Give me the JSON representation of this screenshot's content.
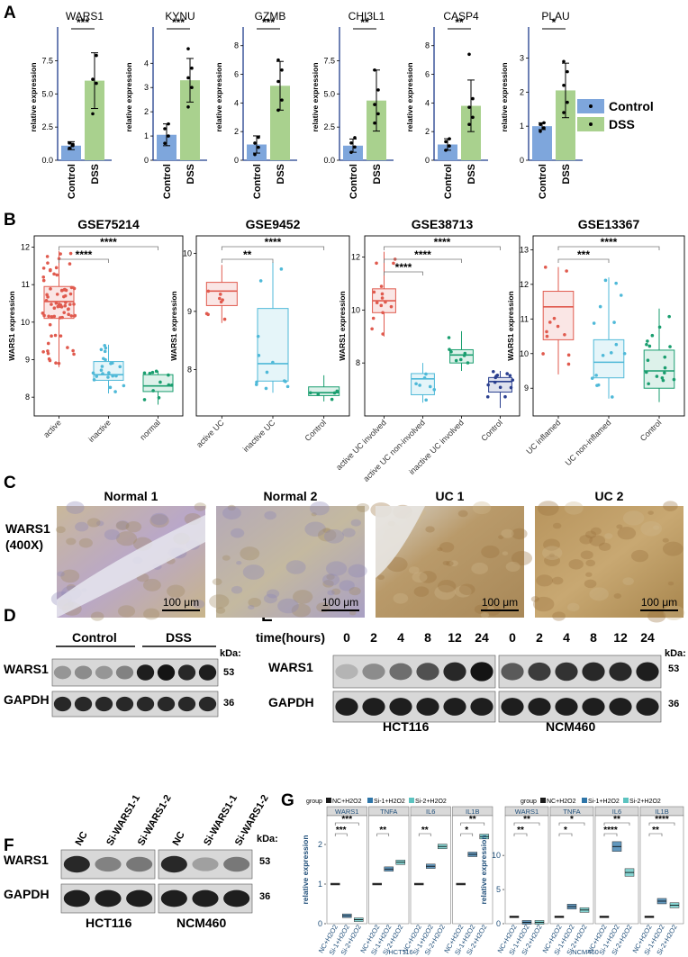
{
  "panels": {
    "a": "A",
    "b": "B",
    "c": "C",
    "d": "D",
    "e": "E",
    "f": "F",
    "g": "G"
  },
  "panel_a": {
    "ylabel": "relative expression",
    "categories": [
      "Control",
      "DSS"
    ],
    "legend": [
      "Control",
      "DSS"
    ],
    "colors": {
      "control": "#7ea6dc",
      "dss": "#a9d18e"
    },
    "genes": [
      {
        "name": "WARS1",
        "sig": "***",
        "ticks": [
          0.0,
          2.5,
          5.0,
          7.5
        ],
        "tick_labels": [
          "0.0",
          "2.5",
          "5.0",
          "7.5"
        ],
        "ymax": 9.5,
        "control": 1.1,
        "control_sd": 0.3,
        "dss": 6.0,
        "dss_sd": 2.1,
        "control_pts": [
          0.9,
          1.1,
          1.3,
          1.2
        ],
        "dss_pts": [
          3.5,
          5.8,
          6.1,
          7.9
        ]
      },
      {
        "name": "KYNU",
        "sig": "***",
        "ticks": [
          0,
          1,
          2,
          3,
          4
        ],
        "tick_labels": [
          "0",
          "1",
          "2",
          "3",
          "4"
        ],
        "ymax": 5.2,
        "control": 1.05,
        "control_sd": 0.45,
        "dss": 3.3,
        "dss_sd": 0.9,
        "control_pts": [
          0.7,
          1.0,
          1.3,
          1.5
        ],
        "dss_pts": [
          2.2,
          3.0,
          3.4,
          3.8,
          4.6
        ]
      },
      {
        "name": "GZMB",
        "sig": "***",
        "ticks": [
          0,
          2,
          4,
          6,
          8
        ],
        "tick_labels": [
          "0",
          "2",
          "4",
          "6",
          "8"
        ],
        "ymax": 8.8,
        "control": 1.1,
        "control_sd": 0.6,
        "dss": 5.2,
        "dss_sd": 1.7,
        "control_pts": [
          0.4,
          0.9,
          1.2,
          1.6
        ],
        "dss_pts": [
          3.5,
          4.2,
          5.5,
          6.3,
          7.0
        ]
      },
      {
        "name": "CHI3L1",
        "sig": "**",
        "ticks": [
          0.0,
          2.5,
          5.0,
          7.5
        ],
        "tick_labels": [
          "0.0",
          "2.5",
          "5.0",
          "7.5"
        ],
        "ymax": 9.5,
        "control": 1.1,
        "control_sd": 0.5,
        "dss": 4.5,
        "dss_sd": 2.3,
        "control_pts": [
          0.6,
          1.0,
          1.3,
          1.7
        ],
        "dss_pts": [
          2.8,
          3.5,
          4.2,
          5.3,
          6.8
        ]
      },
      {
        "name": "CASP4",
        "sig": "**",
        "ticks": [
          0,
          2,
          4,
          6,
          8
        ],
        "tick_labels": [
          "0",
          "2",
          "4",
          "6",
          "8"
        ],
        "ymax": 8.8,
        "control": 1.1,
        "control_sd": 0.4,
        "dss": 3.8,
        "dss_sd": 1.8,
        "control_pts": [
          0.7,
          1.0,
          1.3,
          1.5
        ],
        "dss_pts": [
          2.5,
          3.0,
          3.7,
          4.3,
          7.4
        ]
      },
      {
        "name": "PLAU",
        "sig": "*",
        "ticks": [
          0,
          1,
          2,
          3
        ],
        "tick_labels": [
          "0",
          "1",
          "2",
          "3"
        ],
        "ymax": 3.7,
        "control": 1.0,
        "control_sd": 0.1,
        "dss": 2.05,
        "dss_sd": 0.8,
        "control_pts": [
          0.85,
          0.95,
          1.05,
          1.1
        ],
        "dss_pts": [
          1.4,
          1.7,
          2.2,
          2.6,
          2.9
        ]
      }
    ]
  },
  "panel_b": {
    "ylabel": "WARS1 expression",
    "datasets": [
      {
        "title": "GSE75214",
        "ymin": 7.5,
        "ymax": 12.3,
        "ticks": [
          8,
          9,
          10,
          11,
          12
        ],
        "groups": [
          {
            "label": "active",
            "color": "#e05a4e",
            "q1": 10.1,
            "med": 10.55,
            "q3": 10.95,
            "lo": 8.8,
            "hi": 11.9,
            "n": 70
          },
          {
            "label": "inactive",
            "color": "#4fb9d8",
            "q1": 8.45,
            "med": 8.6,
            "q3": 8.95,
            "lo": 8.1,
            "hi": 9.4,
            "n": 22
          },
          {
            "label": "normal",
            "color": "#1a9e6f",
            "q1": 8.15,
            "med": 8.3,
            "q3": 8.6,
            "lo": 7.8,
            "hi": 8.7,
            "n": 11
          }
        ],
        "comparisons": [
          {
            "from": 0,
            "to": 1,
            "sig": "****"
          },
          {
            "from": 0,
            "to": 2,
            "sig": "****"
          }
        ]
      },
      {
        "title": "GSE9452",
        "ymin": 7.2,
        "ymax": 10.3,
        "ticks": [
          8,
          9,
          10
        ],
        "groups": [
          {
            "label": "active UC",
            "color": "#e05a4e",
            "q1": 9.1,
            "med": 9.35,
            "q3": 9.5,
            "lo": 8.8,
            "hi": 9.8,
            "n": 8
          },
          {
            "label": "inactive UC",
            "color": "#4fb9d8",
            "q1": 7.8,
            "med": 8.1,
            "q3": 9.05,
            "lo": 7.6,
            "hi": 9.85,
            "n": 12
          },
          {
            "label": "Control",
            "color": "#1a9e6f",
            "q1": 7.55,
            "med": 7.6,
            "q3": 7.7,
            "lo": 7.45,
            "hi": 7.9,
            "n": 5
          }
        ],
        "comparisons": [
          {
            "from": 0,
            "to": 1,
            "sig": "**"
          },
          {
            "from": 0,
            "to": 2,
            "sig": "****"
          }
        ]
      },
      {
        "title": "GSE38713",
        "ymin": 6.0,
        "ymax": 12.8,
        "ticks": [
          8,
          10,
          12
        ],
        "groups": [
          {
            "label": "active UC involved",
            "color": "#e05a4e",
            "q1": 9.9,
            "med": 10.35,
            "q3": 10.8,
            "lo": 9.0,
            "hi": 12.2,
            "n": 15
          },
          {
            "label": "active UC non-involved",
            "color": "#4fb9d8",
            "q1": 6.8,
            "med": 7.4,
            "q3": 7.6,
            "lo": 6.5,
            "hi": 8.0,
            "n": 7
          },
          {
            "label": "inactive UC involved",
            "color": "#1a9e6f",
            "q1": 8.0,
            "med": 8.3,
            "q3": 8.5,
            "lo": 7.7,
            "hi": 9.2,
            "n": 8
          },
          {
            "label": "Control",
            "color": "#2a3f8f",
            "q1": 6.9,
            "med": 7.3,
            "q3": 7.45,
            "lo": 6.3,
            "hi": 7.7,
            "n": 13
          }
        ],
        "comparisons": [
          {
            "from": 0,
            "to": 1,
            "sig": "****"
          },
          {
            "from": 0,
            "to": 2,
            "sig": "****"
          },
          {
            "from": 0,
            "to": 3,
            "sig": "****"
          }
        ]
      },
      {
        "title": "GSE13367",
        "ymin": 8.2,
        "ymax": 13.4,
        "ticks": [
          9,
          10,
          11,
          12,
          13
        ],
        "groups": [
          {
            "label": "UC inflamed",
            "color": "#e05a4e",
            "q1": 10.4,
            "med": 11.35,
            "q3": 11.8,
            "lo": 9.4,
            "hi": 12.5,
            "n": 11
          },
          {
            "label": "UC non-inflamed",
            "color": "#4fb9d8",
            "q1": 9.3,
            "med": 9.75,
            "q3": 10.4,
            "lo": 8.7,
            "hi": 12.2,
            "n": 15
          },
          {
            "label": "Control",
            "color": "#1a9e6f",
            "q1": 9.0,
            "med": 9.5,
            "q3": 10.1,
            "lo": 8.6,
            "hi": 11.3,
            "n": 17
          }
        ],
        "comparisons": [
          {
            "from": 0,
            "to": 1,
            "sig": "***"
          },
          {
            "from": 0,
            "to": 2,
            "sig": "****"
          }
        ]
      }
    ]
  },
  "panel_c": {
    "row_label_1": "WARS1",
    "row_label_2": "(400X)",
    "images": [
      {
        "title": "Normal 1",
        "scale": "100 μm"
      },
      {
        "title": "Normal 2",
        "scale": "100 μm"
      },
      {
        "title": "UC 1",
        "scale": "100 μm"
      },
      {
        "title": "UC 2",
        "scale": "100 μm"
      }
    ]
  },
  "panel_d": {
    "groups": [
      "Control",
      "DSS"
    ],
    "kda_label": "kDa:",
    "rows": [
      {
        "label": "WARS1",
        "kda": "53"
      },
      {
        "label": "GAPDH",
        "kda": "36"
      }
    ]
  },
  "panel_e": {
    "time_label": "time(hours)",
    "times": [
      "0",
      "2",
      "4",
      "8",
      "12",
      "24"
    ],
    "kda_label": "kDa:",
    "rows": [
      {
        "label": "WARS1",
        "kda": "53"
      },
      {
        "label": "GAPDH",
        "kda": "36"
      }
    ],
    "cells": [
      "HCT116",
      "NCM460"
    ]
  },
  "panel_f": {
    "lanes": [
      "NC",
      "Si-WARS1-1",
      "Si-WARS1-2"
    ],
    "kda_label": "kDa:",
    "rows": [
      {
        "label": "WARS1",
        "kda": "53"
      },
      {
        "label": "GAPDH",
        "kda": "36"
      }
    ],
    "cells": [
      "HCT116",
      "NCM460"
    ]
  },
  "panel_g": {
    "legend_title": "group",
    "groups": [
      "NC+H2O2",
      "Si-1+H2O2",
      "Si-2+H2O2"
    ],
    "colors": [
      "#1a1a1a",
      "#2e75a8",
      "#5cc3c0"
    ],
    "ylabel": "relative expression",
    "facets": [
      "WARS1",
      "TNFA",
      "IL6",
      "IL1B"
    ],
    "cells": [
      {
        "name": "HCT116",
        "ymax": 2.5,
        "ticks": [
          0,
          1,
          2
        ],
        "values": [
          [
            1.0,
            0.2,
            0.1
          ],
          [
            1.0,
            1.38,
            1.55
          ],
          [
            1.0,
            1.45,
            1.95
          ],
          [
            1.0,
            1.75,
            2.2
          ]
        ],
        "sigs": [
          [
            "***",
            "***"
          ],
          [
            "**",
            ""
          ],
          [
            "**",
            ""
          ],
          [
            "*",
            "**"
          ]
        ]
      },
      {
        "name": "NCM460",
        "ymax": 14.5,
        "ticks": [
          0,
          5,
          10
        ],
        "values": [
          [
            1.0,
            0.2,
            0.2
          ],
          [
            1.0,
            2.5,
            2.0
          ],
          [
            1.0,
            11.3,
            7.5
          ],
          [
            1.0,
            3.3,
            2.7
          ]
        ],
        "sigs": [
          [
            "**",
            "**"
          ],
          [
            "*",
            "*"
          ],
          [
            "****",
            "**"
          ],
          [
            "**",
            "****"
          ]
        ]
      }
    ]
  }
}
